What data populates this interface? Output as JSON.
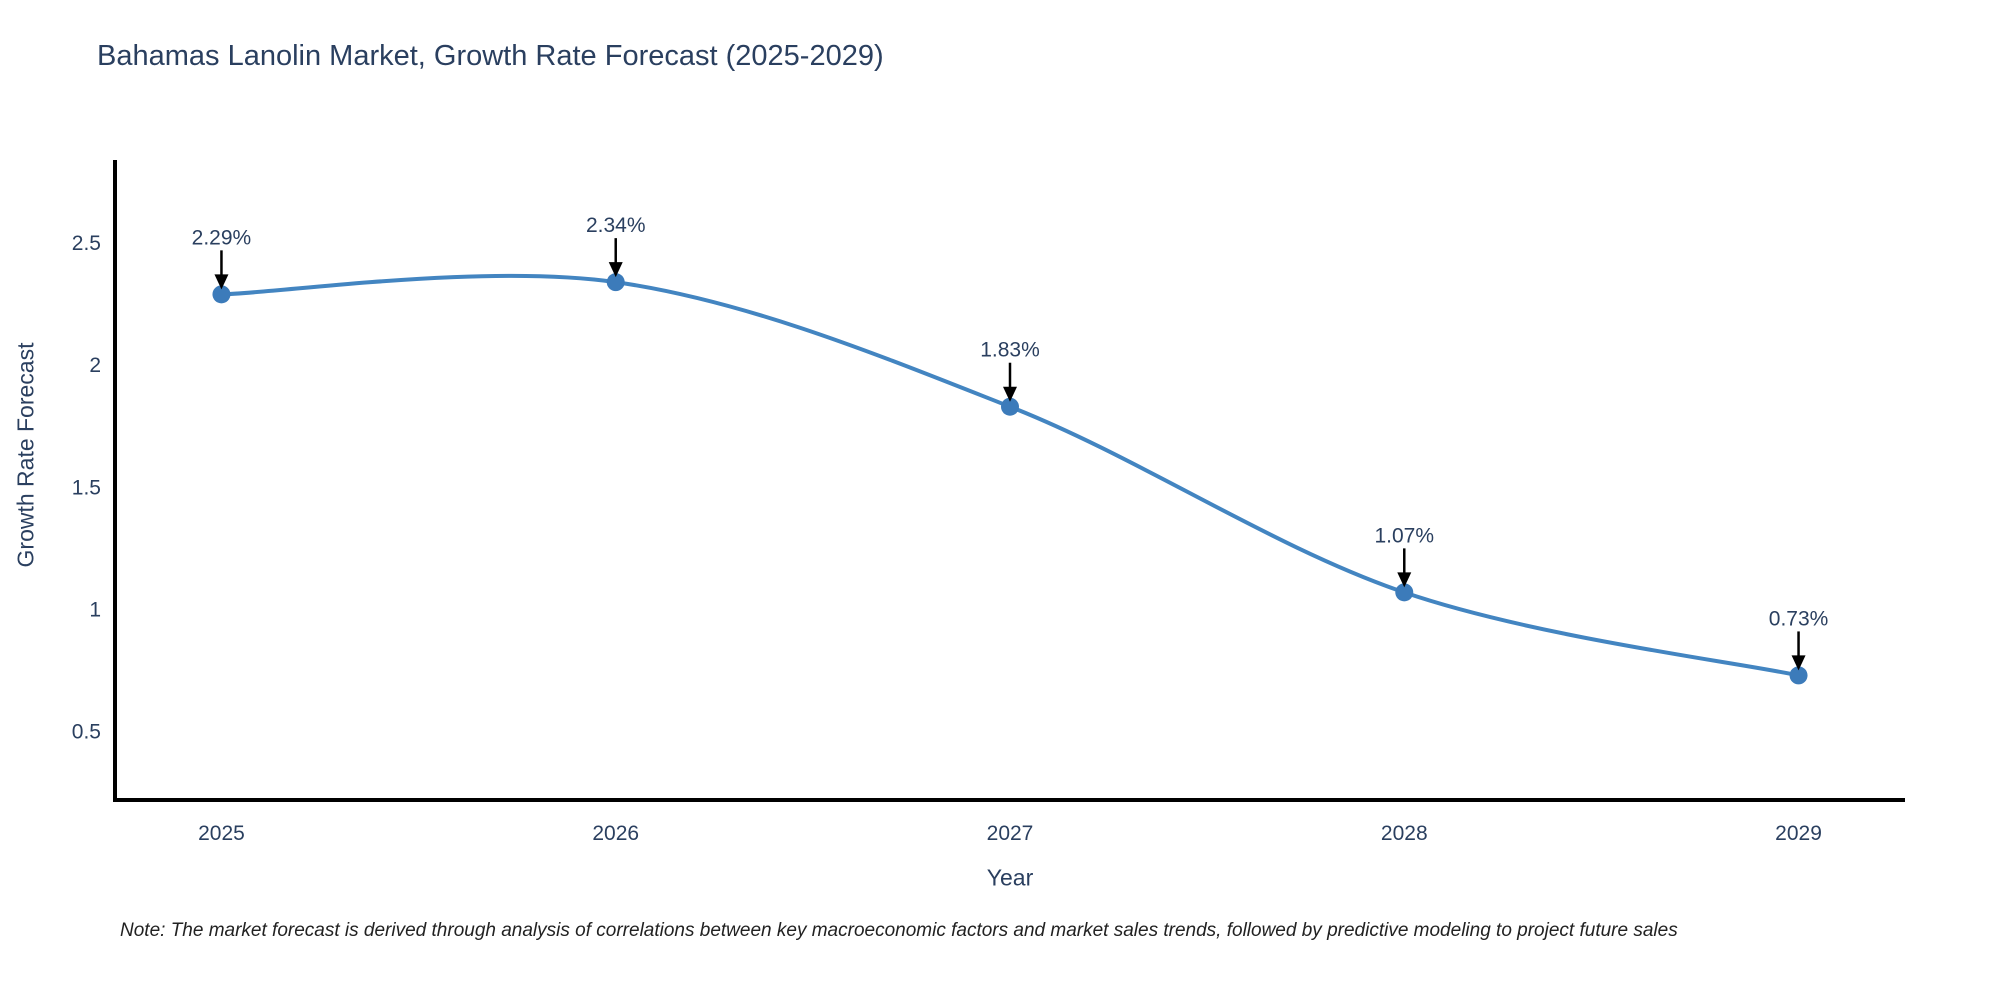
{
  "chart_data": {
    "type": "line",
    "title": "Bahamas Lanolin Market, Growth Rate Forecast (2025-2029)",
    "xlabel": "Year",
    "ylabel": "Growth Rate Forecast",
    "categories": [
      "2025",
      "2026",
      "2027",
      "2028",
      "2029"
    ],
    "x": [
      2025,
      2026,
      2027,
      2028,
      2029
    ],
    "values": [
      2.29,
      2.34,
      1.83,
      1.07,
      0.73
    ],
    "point_labels": [
      "2.29%",
      "2.34%",
      "1.83%",
      "1.07%",
      "0.73%"
    ],
    "ytick_values": [
      0.5,
      1,
      1.5,
      2,
      2.5
    ],
    "ytick_labels": [
      "0.5",
      "1",
      "1.5",
      "2",
      "2.5"
    ],
    "xlim": [
      2024.73,
      2029.27
    ],
    "ylim": [
      0.22,
      2.84
    ],
    "grid": false,
    "legend": "none",
    "line_shape": "spline",
    "annotation_style": "label-with-down-arrow",
    "colors": {
      "line": "#4385c1",
      "marker": "#3c7bba",
      "arrow": "#000000",
      "text": "#2a3f5f",
      "axis": "#000000"
    }
  },
  "note": "Note: The market forecast is derived through analysis of correlations between key macroeconomic factors and market sales trends, followed by predictive modeling to project future sales"
}
